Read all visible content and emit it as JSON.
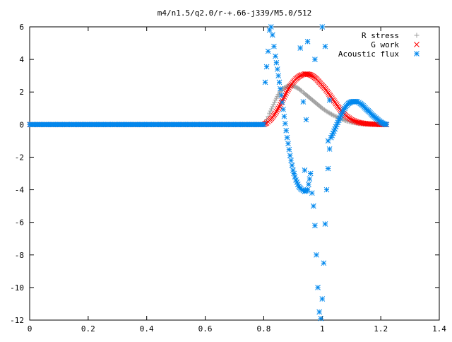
{
  "chart_data": {
    "type": "scatter",
    "title": "m4/n1.5/q2.0/r-+.66-j339/M5.0/512",
    "xlabel": "",
    "ylabel": "",
    "xlim": [
      0,
      1.4
    ],
    "ylim": [
      -12,
      6
    ],
    "grid": false,
    "legend_position": "top-right",
    "x_ticks": [
      0,
      0.2,
      0.4,
      0.6,
      0.8,
      1,
      1.2,
      1.4
    ],
    "x_tick_labels": [
      "0",
      "0.2",
      "0.4",
      "0.6",
      "0.8",
      "1",
      "1.2",
      "1.4"
    ],
    "y_ticks": [
      -12,
      -10,
      -8,
      -6,
      -4,
      -2,
      0,
      2,
      4,
      6
    ],
    "y_tick_labels": [
      "-12",
      "-10",
      "-8",
      "-6",
      "-4",
      "-2",
      "0",
      "2",
      "4",
      "6"
    ],
    "series": [
      {
        "name": "R stress",
        "marker": "plus",
        "color": "#a0a0a0",
        "x": [
          0.0,
          0.1,
          0.2,
          0.3,
          0.4,
          0.5,
          0.6,
          0.7,
          0.8,
          0.81,
          0.82,
          0.83,
          0.84,
          0.85,
          0.86,
          0.87,
          0.88,
          0.89,
          0.9,
          0.91,
          0.92,
          0.93,
          0.94,
          0.95,
          0.96,
          0.97,
          0.98,
          0.99,
          1.0,
          1.02,
          1.04,
          1.06,
          1.08,
          1.1,
          1.12,
          1.14,
          1.16,
          1.18,
          1.2,
          1.22
        ],
        "y": [
          0,
          0,
          0,
          0,
          0,
          0,
          0,
          0,
          0,
          0.3,
          0.7,
          1.1,
          1.5,
          1.85,
          2.1,
          2.25,
          2.35,
          2.4,
          2.38,
          2.3,
          2.2,
          2.05,
          1.9,
          1.75,
          1.6,
          1.45,
          1.3,
          1.15,
          1.0,
          0.75,
          0.55,
          0.38,
          0.25,
          0.15,
          0.08,
          0.04,
          0.02,
          0.01,
          0.0,
          0.0
        ]
      },
      {
        "name": "G work",
        "marker": "cross",
        "color": "#ff0000",
        "x": [
          0.0,
          0.1,
          0.2,
          0.3,
          0.4,
          0.5,
          0.6,
          0.7,
          0.8,
          0.81,
          0.82,
          0.83,
          0.84,
          0.85,
          0.86,
          0.87,
          0.88,
          0.89,
          0.9,
          0.91,
          0.92,
          0.93,
          0.94,
          0.95,
          0.96,
          0.97,
          0.98,
          0.99,
          1.0,
          1.01,
          1.02,
          1.03,
          1.04,
          1.05,
          1.06,
          1.07,
          1.08,
          1.1,
          1.12,
          1.14,
          1.16,
          1.18,
          1.2,
          1.22
        ],
        "y": [
          0,
          0,
          0,
          0,
          0,
          0,
          0,
          0,
          0,
          0.1,
          0.25,
          0.45,
          0.7,
          1.0,
          1.35,
          1.7,
          2.05,
          2.35,
          2.6,
          2.8,
          2.95,
          3.05,
          3.1,
          3.1,
          3.05,
          2.95,
          2.8,
          2.6,
          2.4,
          2.2,
          1.95,
          1.7,
          1.45,
          1.2,
          0.95,
          0.75,
          0.55,
          0.3,
          0.15,
          0.08,
          0.04,
          0.02,
          0.0,
          0.0
        ]
      },
      {
        "name": "Acoustic flux",
        "marker": "star",
        "color": "#0088ee",
        "x": [
          0.0,
          0.1,
          0.2,
          0.3,
          0.4,
          0.5,
          0.6,
          0.7,
          0.8,
          0.805,
          0.815,
          0.82,
          0.825,
          0.83,
          0.835,
          0.84,
          0.85,
          0.86,
          0.87,
          0.88,
          0.89,
          0.9,
          0.91,
          0.92,
          0.93,
          0.94,
          0.95,
          0.96,
          0.965,
          0.97,
          0.975,
          0.98,
          0.985,
          0.99,
          0.995,
          1.0,
          1.005,
          1.01,
          1.015,
          1.02,
          1.025,
          1.03,
          1.04,
          1.05,
          1.06,
          1.07,
          1.08,
          1.09,
          1.1,
          1.11,
          1.12,
          1.13,
          1.14,
          1.15,
          1.16,
          1.17,
          1.18,
          1.19,
          1.2,
          1.21,
          1.22
        ],
        "y": [
          0,
          0,
          0,
          0,
          0,
          0,
          0,
          0,
          0,
          2.6,
          4.5,
          5.8,
          6.0,
          5.5,
          4.8,
          4.2,
          3.0,
          1.8,
          0.5,
          -0.8,
          -1.9,
          -2.8,
          -3.4,
          -3.8,
          -4.0,
          -4.1,
          -4.0,
          -3.0,
          -4.2,
          -5.0,
          -6.2,
          -8.0,
          -10.0,
          -11.5,
          -11.9,
          -10.7,
          -8.5,
          -6.1,
          -4.0,
          -2.7,
          -1.5,
          -0.8,
          -0.4,
          0.0,
          0.4,
          0.8,
          1.1,
          1.3,
          1.4,
          1.42,
          1.4,
          1.3,
          1.15,
          0.95,
          0.8,
          0.6,
          0.45,
          0.3,
          0.15,
          0.05,
          0.0
        ]
      }
    ],
    "scattered_points": {
      "series": "Acoustic flux",
      "x": [
        0.925,
        0.935,
        0.94,
        0.945,
        0.95,
        0.975,
        1.0,
        1.01,
        1.02,
        1.025
      ],
      "y": [
        4.7,
        1.4,
        -2.8,
        0.3,
        5.1,
        4.0,
        6.0,
        4.8,
        -1.0,
        1.5
      ]
    }
  }
}
